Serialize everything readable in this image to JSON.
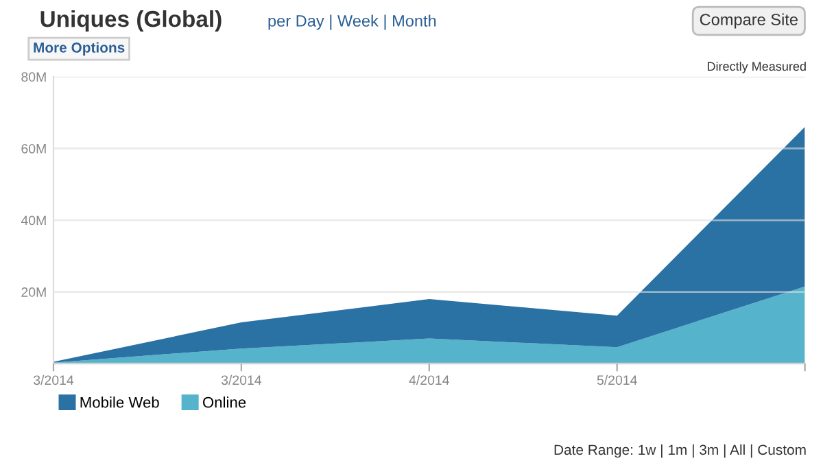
{
  "chart_data": {
    "type": "area",
    "stacked": true,
    "title": "Uniques (Global)",
    "subtitle": "per Day | Week | Month",
    "annotations": [
      "Compare Site",
      "More Options",
      "Directly Measured",
      "Date Range: 1w | 1m | 3m | All | Custom"
    ],
    "categories": [
      "3/2014",
      "3/2014",
      "4/2014",
      "5/2014",
      null
    ],
    "series": [
      {
        "name": "Online",
        "color": "#55b3cc",
        "values": [
          0.3,
          4.2,
          7,
          4.6,
          21.5
        ]
      },
      {
        "name": "Mobile Web",
        "color": "#2a71a4",
        "values": [
          0.2,
          7.3,
          11,
          8.8,
          44.5
        ]
      }
    ],
    "ylim": [
      0,
      80
    ],
    "yticks": [
      {
        "value": 0,
        "label": null
      },
      {
        "value": 20,
        "label": "20M"
      },
      {
        "value": 40,
        "label": "40M"
      },
      {
        "value": 60,
        "label": "60M"
      },
      {
        "value": 80,
        "label": "80M"
      }
    ],
    "grid": "y",
    "legend": "bottom left"
  }
}
